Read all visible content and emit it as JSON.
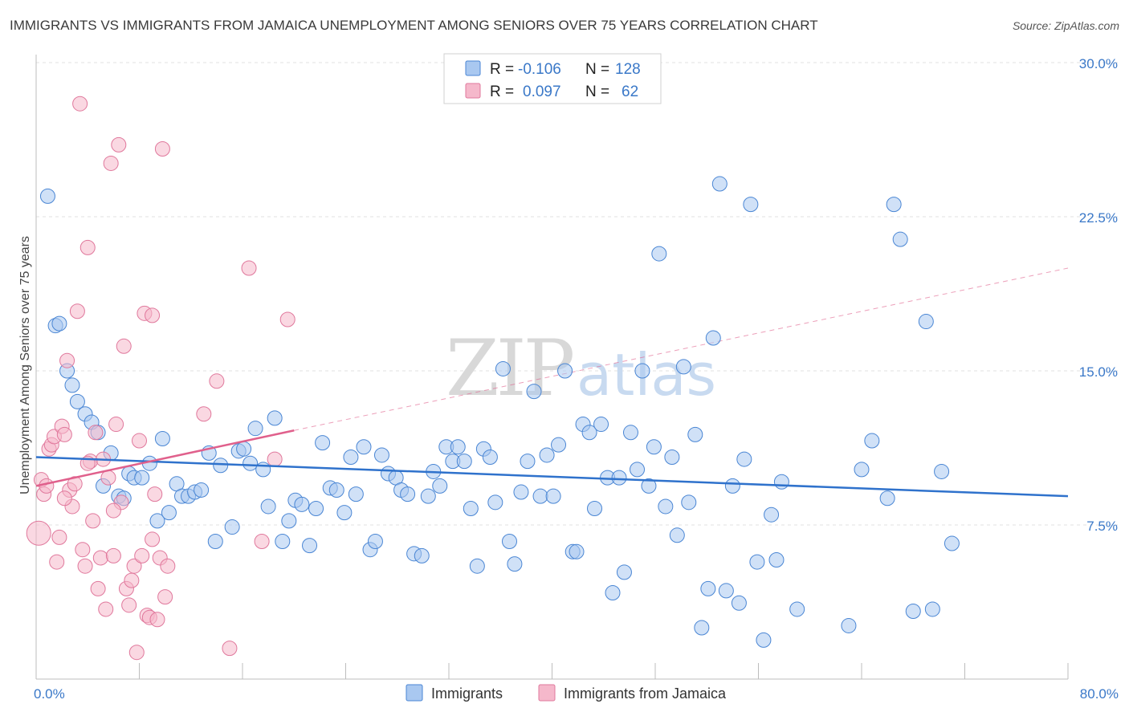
{
  "title": "IMMIGRANTS VS IMMIGRANTS FROM JAMAICA UNEMPLOYMENT AMONG SENIORS OVER 75 YEARS CORRELATION CHART",
  "source": "Source: ZipAtlas.com",
  "watermark": {
    "zip": "ZIP",
    "atlas": "atlas"
  },
  "colors": {
    "immigrants_fill": "#a9c8f0",
    "immigrants_stroke": "#4a86d4",
    "immigrants_line": "#2f72cc",
    "jamaica_fill": "#f5b8cb",
    "jamaica_stroke": "#e0789c",
    "jamaica_line": "#e0608c",
    "tick_text": "#3a78c8"
  },
  "legend": {
    "rows": [
      {
        "r_label": "R =",
        "r_value": "-0.106",
        "n_label": "N =",
        "n_value": "128"
      },
      {
        "r_label": "R =",
        "r_value": "0.097",
        "n_label": "N =",
        "n_value": "62"
      }
    ]
  },
  "bottom_legend": [
    "Immigrants",
    "Immigrants from Jamaica"
  ],
  "chart_data": {
    "type": "scatter",
    "ylabel": "Unemployment Among Seniors over 75 years",
    "xlim": [
      0,
      80
    ],
    "ylim": [
      0,
      30
    ],
    "x_tick_labels": [
      "0.0%",
      "80.0%"
    ],
    "y_ticks": [
      {
        "value": 7.5,
        "label": "7.5%"
      },
      {
        "value": 15,
        "label": "15.0%"
      },
      {
        "value": 22.5,
        "label": "22.5%"
      },
      {
        "value": 30,
        "label": "30.0%"
      }
    ],
    "grid": "horizontal dashed",
    "series": [
      {
        "name": "Immigrants",
        "trend": {
          "x0": 0,
          "y0": 10.8,
          "x1": 80,
          "y1": 8.9
        },
        "points": [
          [
            0.9,
            23.5
          ],
          [
            1.5,
            17.2
          ],
          [
            1.8,
            17.3
          ],
          [
            2.4,
            15.0
          ],
          [
            2.8,
            14.3
          ],
          [
            3.2,
            13.5
          ],
          [
            3.8,
            12.9
          ],
          [
            4.3,
            12.5
          ],
          [
            4.8,
            12.0
          ],
          [
            5.2,
            9.4
          ],
          [
            5.8,
            11.0
          ],
          [
            6.4,
            8.9
          ],
          [
            6.8,
            8.8
          ],
          [
            7.2,
            10.0
          ],
          [
            7.6,
            9.8
          ],
          [
            8.2,
            9.8
          ],
          [
            8.8,
            10.5
          ],
          [
            9.4,
            7.7
          ],
          [
            9.8,
            11.7
          ],
          [
            10.3,
            8.1
          ],
          [
            10.9,
            9.5
          ],
          [
            11.3,
            8.9
          ],
          [
            11.8,
            8.9
          ],
          [
            12.3,
            9.1
          ],
          [
            12.8,
            9.2
          ],
          [
            13.4,
            11.0
          ],
          [
            13.9,
            6.7
          ],
          [
            14.3,
            10.4
          ],
          [
            15.2,
            7.4
          ],
          [
            15.7,
            11.1
          ],
          [
            16.1,
            11.2
          ],
          [
            16.6,
            10.5
          ],
          [
            17.0,
            12.2
          ],
          [
            17.6,
            10.2
          ],
          [
            18.0,
            8.4
          ],
          [
            18.5,
            12.7
          ],
          [
            19.1,
            6.7
          ],
          [
            19.6,
            7.7
          ],
          [
            20.1,
            8.7
          ],
          [
            20.6,
            8.5
          ],
          [
            21.2,
            6.5
          ],
          [
            21.7,
            8.3
          ],
          [
            22.2,
            11.5
          ],
          [
            22.8,
            9.3
          ],
          [
            23.3,
            9.2
          ],
          [
            23.9,
            8.1
          ],
          [
            24.4,
            10.8
          ],
          [
            24.8,
            9.0
          ],
          [
            25.4,
            11.3
          ],
          [
            25.9,
            6.3
          ],
          [
            26.3,
            6.7
          ],
          [
            26.8,
            10.9
          ],
          [
            27.3,
            10.0
          ],
          [
            27.9,
            9.8
          ],
          [
            28.3,
            9.2
          ],
          [
            28.8,
            9.0
          ],
          [
            29.3,
            6.1
          ],
          [
            29.9,
            6.0
          ],
          [
            30.4,
            8.9
          ],
          [
            30.8,
            10.1
          ],
          [
            31.3,
            9.4
          ],
          [
            31.8,
            11.3
          ],
          [
            32.3,
            10.6
          ],
          [
            32.7,
            11.3
          ],
          [
            33.2,
            10.6
          ],
          [
            33.7,
            8.3
          ],
          [
            34.2,
            5.5
          ],
          [
            34.7,
            11.2
          ],
          [
            35.2,
            10.8
          ],
          [
            35.6,
            8.6
          ],
          [
            36.2,
            15.1
          ],
          [
            36.7,
            6.7
          ],
          [
            37.1,
            5.6
          ],
          [
            37.6,
            9.1
          ],
          [
            38.1,
            10.6
          ],
          [
            38.6,
            14.0
          ],
          [
            39.1,
            8.9
          ],
          [
            39.6,
            10.9
          ],
          [
            40.1,
            8.9
          ],
          [
            40.5,
            11.4
          ],
          [
            41.0,
            15.0
          ],
          [
            41.6,
            6.2
          ],
          [
            41.9,
            6.2
          ],
          [
            42.4,
            12.4
          ],
          [
            42.9,
            12.0
          ],
          [
            43.3,
            8.3
          ],
          [
            43.8,
            12.4
          ],
          [
            44.3,
            9.8
          ],
          [
            44.7,
            4.2
          ],
          [
            45.2,
            9.8
          ],
          [
            45.6,
            5.2
          ],
          [
            46.1,
            12.0
          ],
          [
            46.6,
            10.2
          ],
          [
            47.0,
            15.0
          ],
          [
            47.5,
            9.4
          ],
          [
            47.9,
            11.3
          ],
          [
            48.3,
            20.7
          ],
          [
            48.8,
            8.4
          ],
          [
            49.3,
            10.8
          ],
          [
            49.7,
            7.0
          ],
          [
            50.2,
            15.2
          ],
          [
            50.6,
            8.6
          ],
          [
            51.1,
            11.9
          ],
          [
            51.6,
            2.5
          ],
          [
            52.1,
            4.4
          ],
          [
            52.5,
            16.6
          ],
          [
            53.0,
            24.1
          ],
          [
            53.5,
            4.3
          ],
          [
            54.0,
            9.4
          ],
          [
            54.5,
            3.7
          ],
          [
            54.9,
            10.7
          ],
          [
            55.4,
            23.1
          ],
          [
            55.9,
            5.7
          ],
          [
            56.4,
            1.9
          ],
          [
            57.0,
            8.0
          ],
          [
            57.4,
            5.8
          ],
          [
            57.8,
            9.6
          ],
          [
            59.0,
            3.4
          ],
          [
            63.0,
            2.6
          ],
          [
            64.0,
            10.2
          ],
          [
            64.8,
            11.6
          ],
          [
            66.0,
            8.8
          ],
          [
            67.0,
            21.4
          ],
          [
            68.0,
            3.3
          ],
          [
            69.0,
            17.4
          ],
          [
            69.5,
            3.4
          ],
          [
            70.2,
            10.1
          ],
          [
            71.0,
            6.6
          ],
          [
            66.5,
            23.1
          ]
        ]
      },
      {
        "name": "Immigrants from Jamaica",
        "trend": {
          "x0": 0,
          "y0": 9.4,
          "x1": 20,
          "y1": 12.1
        },
        "trend_extended": {
          "x0": 20,
          "y0": 12.1,
          "x1": 80,
          "y1": 20.0
        },
        "points": [
          [
            0.2,
            7.1
          ],
          [
            0.4,
            9.7
          ],
          [
            0.6,
            9.0
          ],
          [
            0.8,
            9.4
          ],
          [
            1.0,
            11.2
          ],
          [
            1.2,
            11.4
          ],
          [
            1.4,
            11.8
          ],
          [
            1.6,
            5.7
          ],
          [
            1.8,
            6.9
          ],
          [
            2.0,
            12.3
          ],
          [
            2.2,
            11.9
          ],
          [
            2.4,
            15.5
          ],
          [
            2.6,
            9.2
          ],
          [
            2.8,
            8.4
          ],
          [
            3.0,
            9.5
          ],
          [
            3.2,
            17.9
          ],
          [
            3.4,
            28.0
          ],
          [
            3.6,
            6.3
          ],
          [
            3.8,
            5.5
          ],
          [
            4.0,
            21.0
          ],
          [
            4.2,
            10.6
          ],
          [
            4.4,
            7.7
          ],
          [
            4.6,
            12.0
          ],
          [
            4.8,
            4.4
          ],
          [
            5.0,
            5.9
          ],
          [
            5.2,
            10.7
          ],
          [
            5.4,
            3.4
          ],
          [
            5.6,
            9.8
          ],
          [
            5.8,
            25.1
          ],
          [
            6.0,
            6.0
          ],
          [
            6.2,
            12.4
          ],
          [
            6.4,
            26.0
          ],
          [
            6.6,
            8.6
          ],
          [
            6.8,
            16.2
          ],
          [
            7.0,
            4.4
          ],
          [
            7.2,
            3.6
          ],
          [
            7.4,
            4.8
          ],
          [
            7.6,
            5.5
          ],
          [
            7.8,
            1.3
          ],
          [
            8.0,
            11.6
          ],
          [
            8.2,
            6.0
          ],
          [
            8.4,
            17.8
          ],
          [
            8.6,
            3.1
          ],
          [
            8.8,
            3.0
          ],
          [
            9.0,
            17.7
          ],
          [
            9.2,
            9.0
          ],
          [
            9.4,
            2.9
          ],
          [
            9.6,
            5.9
          ],
          [
            9.8,
            25.8
          ],
          [
            10.0,
            4.0
          ],
          [
            10.2,
            5.5
          ],
          [
            13.0,
            12.9
          ],
          [
            14.0,
            14.5
          ],
          [
            15.0,
            1.5
          ],
          [
            16.5,
            20.0
          ],
          [
            17.5,
            6.7
          ],
          [
            18.5,
            10.7
          ],
          [
            19.5,
            17.5
          ],
          [
            2.2,
            8.8
          ],
          [
            4.0,
            10.5
          ],
          [
            6.0,
            8.2
          ],
          [
            9.0,
            6.8
          ]
        ]
      }
    ]
  }
}
